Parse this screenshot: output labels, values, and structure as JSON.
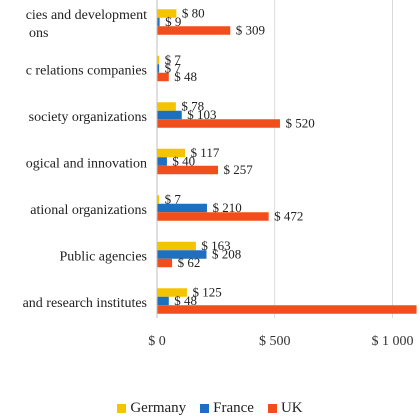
{
  "chart_data": {
    "type": "bar",
    "orientation": "horizontal",
    "title": "",
    "xlabel": "",
    "ylabel": "",
    "xlim": [
      0,
      1000
    ],
    "x_ticks": [
      {
        "value": 0,
        "label": "$ 0"
      },
      {
        "value": 500,
        "label": "$ 500"
      },
      {
        "value": 1000,
        "label": "$ 1 000"
      }
    ],
    "grid": true,
    "legend_position": "bottom",
    "categories": [
      {
        "line1": "cies and development",
        "line2": "ons"
      },
      {
        "line1": "c relations companies",
        "line2": ""
      },
      {
        "line1": "society organizations",
        "line2": ""
      },
      {
        "line1": "ogical and innovation",
        "line2": ""
      },
      {
        "line1": "ational organizations",
        "line2": ""
      },
      {
        "line1": "Public agencies",
        "line2": ""
      },
      {
        "line1": "and research institutes",
        "line2": ""
      }
    ],
    "series": [
      {
        "name": "Germany",
        "color": "#F5C400",
        "values": [
          80,
          7,
          78,
          117,
          7,
          163,
          125
        ],
        "labels": [
          "$ 80",
          "$ 7",
          "$ 78",
          "$ 117",
          "$ 7",
          "$ 163",
          "$ 125"
        ]
      },
      {
        "name": "France",
        "color": "#1F6FBF",
        "values": [
          9,
          7,
          103,
          40,
          210,
          208,
          48
        ],
        "labels": [
          "$ 9",
          "$ 7",
          "$ 103",
          "$ 40",
          "$ 210",
          "$ 208",
          "$ 48"
        ]
      },
      {
        "name": "UK",
        "color": "#F04E1A",
        "values": [
          309,
          48,
          520,
          257,
          472,
          62,
          1100
        ],
        "labels": [
          "$ 309",
          "$ 48",
          "$ 520",
          "$ 257",
          "$ 472",
          "$ 62",
          ""
        ]
      }
    ]
  }
}
